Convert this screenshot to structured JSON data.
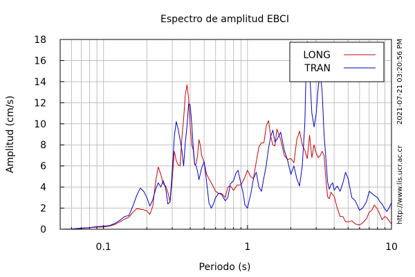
{
  "chart_data": {
    "type": "line",
    "title": "Espectro de amplitud EBCI",
    "xlabel": "Periodo (s)",
    "ylabel": "Amplitud (cm/s)",
    "x_scale": "log",
    "xlim": [
      0.05,
      10
    ],
    "ylim": [
      0,
      18
    ],
    "x_ticks": [
      0.1,
      1,
      10
    ],
    "x_tick_labels": [
      "0.1",
      "1",
      "10"
    ],
    "y_ticks": [
      0,
      2,
      4,
      6,
      8,
      10,
      12,
      14,
      16,
      18
    ],
    "grid": true,
    "legend_position": "top-right",
    "series": [
      {
        "name": "LONG",
        "color": "#cc0000",
        "points": [
          [
            0.05,
            0.0
          ],
          [
            0.06,
            0.02
          ],
          [
            0.07,
            0.08
          ],
          [
            0.08,
            0.15
          ],
          [
            0.09,
            0.2
          ],
          [
            0.1,
            0.22
          ],
          [
            0.11,
            0.3
          ],
          [
            0.12,
            0.45
          ],
          [
            0.13,
            0.7
          ],
          [
            0.14,
            0.95
          ],
          [
            0.15,
            1.15
          ],
          [
            0.16,
            1.6
          ],
          [
            0.17,
            1.95
          ],
          [
            0.18,
            1.9
          ],
          [
            0.19,
            1.85
          ],
          [
            0.2,
            1.75
          ],
          [
            0.21,
            1.4
          ],
          [
            0.22,
            2.2
          ],
          [
            0.23,
            4.5
          ],
          [
            0.24,
            5.9
          ],
          [
            0.25,
            5.2
          ],
          [
            0.26,
            4.3
          ],
          [
            0.27,
            4.1
          ],
          [
            0.28,
            3.5
          ],
          [
            0.29,
            2.6
          ],
          [
            0.3,
            4.8
          ],
          [
            0.31,
            7.4
          ],
          [
            0.32,
            6.5
          ],
          [
            0.33,
            6.1
          ],
          [
            0.34,
            6.0
          ],
          [
            0.35,
            8.6
          ],
          [
            0.36,
            10.5
          ],
          [
            0.37,
            12.7
          ],
          [
            0.38,
            13.7
          ],
          [
            0.39,
            12.4
          ],
          [
            0.4,
            9.8
          ],
          [
            0.41,
            8.0
          ],
          [
            0.42,
            7.5
          ],
          [
            0.43,
            6.1
          ],
          [
            0.44,
            6.2
          ],
          [
            0.45,
            7.0
          ],
          [
            0.46,
            8.5
          ],
          [
            0.47,
            8.0
          ],
          [
            0.48,
            7.0
          ],
          [
            0.5,
            6.3
          ],
          [
            0.52,
            5.2
          ],
          [
            0.55,
            4.6
          ],
          [
            0.58,
            4.0
          ],
          [
            0.6,
            3.6
          ],
          [
            0.63,
            3.4
          ],
          [
            0.66,
            3.4
          ],
          [
            0.7,
            3.0
          ],
          [
            0.73,
            4.0
          ],
          [
            0.76,
            4.1
          ],
          [
            0.8,
            3.7
          ],
          [
            0.85,
            4.2
          ],
          [
            0.9,
            4.2
          ],
          [
            0.95,
            4.8
          ],
          [
            1.0,
            5.6
          ],
          [
            1.05,
            5.0
          ],
          [
            1.1,
            4.8
          ],
          [
            1.15,
            6.4
          ],
          [
            1.2,
            7.8
          ],
          [
            1.25,
            8.2
          ],
          [
            1.3,
            8.2
          ],
          [
            1.35,
            9.8
          ],
          [
            1.4,
            10.3
          ],
          [
            1.45,
            8.8
          ],
          [
            1.5,
            8.0
          ],
          [
            1.55,
            7.9
          ],
          [
            1.6,
            9.5
          ],
          [
            1.7,
            8.5
          ],
          [
            1.8,
            7.0
          ],
          [
            1.9,
            6.6
          ],
          [
            2.0,
            6.7
          ],
          [
            2.1,
            6.3
          ],
          [
            2.2,
            8.5
          ],
          [
            2.3,
            9.3
          ],
          [
            2.4,
            8.0
          ],
          [
            2.5,
            7.5
          ],
          [
            2.6,
            6.7
          ],
          [
            2.7,
            8.9
          ],
          [
            2.8,
            6.8
          ],
          [
            2.9,
            8.0
          ],
          [
            3.0,
            7.2
          ],
          [
            3.1,
            6.8
          ],
          [
            3.2,
            7.0
          ],
          [
            3.3,
            7.4
          ],
          [
            3.4,
            7.0
          ],
          [
            3.5,
            4.8
          ],
          [
            3.6,
            3.1
          ],
          [
            3.7,
            2.9
          ],
          [
            3.8,
            3.5
          ],
          [
            3.9,
            3.3
          ],
          [
            4.0,
            3.1
          ],
          [
            4.2,
            2.0
          ],
          [
            4.4,
            1.2
          ],
          [
            4.6,
            1.2
          ],
          [
            4.8,
            0.7
          ],
          [
            5.0,
            0.7
          ],
          [
            5.3,
            0.8
          ],
          [
            5.6,
            0.5
          ],
          [
            6.0,
            0.4
          ],
          [
            6.3,
            0.6
          ],
          [
            6.7,
            1.0
          ],
          [
            7.0,
            1.6
          ],
          [
            7.3,
            1.8
          ],
          [
            7.6,
            2.3
          ],
          [
            8.0,
            1.9
          ],
          [
            8.3,
            1.4
          ],
          [
            8.6,
            0.9
          ],
          [
            9.0,
            1.2
          ],
          [
            9.3,
            1.1
          ],
          [
            9.6,
            0.8
          ],
          [
            10.0,
            0.5
          ]
        ]
      },
      {
        "name": "TRAN",
        "color": "#0000cc",
        "points": [
          [
            0.05,
            0.0
          ],
          [
            0.06,
            0.02
          ],
          [
            0.07,
            0.1
          ],
          [
            0.08,
            0.15
          ],
          [
            0.09,
            0.25
          ],
          [
            0.1,
            0.28
          ],
          [
            0.11,
            0.35
          ],
          [
            0.12,
            0.55
          ],
          [
            0.13,
            0.85
          ],
          [
            0.14,
            1.2
          ],
          [
            0.15,
            1.3
          ],
          [
            0.16,
            2.2
          ],
          [
            0.17,
            3.2
          ],
          [
            0.18,
            3.9
          ],
          [
            0.19,
            3.6
          ],
          [
            0.2,
            3.0
          ],
          [
            0.21,
            2.2
          ],
          [
            0.22,
            2.8
          ],
          [
            0.23,
            3.8
          ],
          [
            0.24,
            4.4
          ],
          [
            0.25,
            4.0
          ],
          [
            0.26,
            4.6
          ],
          [
            0.27,
            3.9
          ],
          [
            0.28,
            2.4
          ],
          [
            0.29,
            2.6
          ],
          [
            0.3,
            5.5
          ],
          [
            0.31,
            8.8
          ],
          [
            0.32,
            10.2
          ],
          [
            0.33,
            9.5
          ],
          [
            0.34,
            8.5
          ],
          [
            0.35,
            7.5
          ],
          [
            0.36,
            6.0
          ],
          [
            0.37,
            8.2
          ],
          [
            0.38,
            9.8
          ],
          [
            0.39,
            11.9
          ],
          [
            0.4,
            11.8
          ],
          [
            0.41,
            10.0
          ],
          [
            0.42,
            7.8
          ],
          [
            0.43,
            6.2
          ],
          [
            0.44,
            6.0
          ],
          [
            0.45,
            5.5
          ],
          [
            0.46,
            4.7
          ],
          [
            0.48,
            5.8
          ],
          [
            0.5,
            6.4
          ],
          [
            0.52,
            4.5
          ],
          [
            0.54,
            2.5
          ],
          [
            0.56,
            2.0
          ],
          [
            0.58,
            2.4
          ],
          [
            0.6,
            3.0
          ],
          [
            0.63,
            3.4
          ],
          [
            0.66,
            3.3
          ],
          [
            0.7,
            2.7
          ],
          [
            0.73,
            3.0
          ],
          [
            0.76,
            4.3
          ],
          [
            0.8,
            4.6
          ],
          [
            0.83,
            5.3
          ],
          [
            0.86,
            5.6
          ],
          [
            0.9,
            4.3
          ],
          [
            0.93,
            3.5
          ],
          [
            0.96,
            2.3
          ],
          [
            1.0,
            2.0
          ],
          [
            1.03,
            2.8
          ],
          [
            1.06,
            3.5
          ],
          [
            1.1,
            4.8
          ],
          [
            1.15,
            5.4
          ],
          [
            1.2,
            4.0
          ],
          [
            1.25,
            3.6
          ],
          [
            1.3,
            4.9
          ],
          [
            1.35,
            6.1
          ],
          [
            1.4,
            7.7
          ],
          [
            1.45,
            8.8
          ],
          [
            1.5,
            9.4
          ],
          [
            1.55,
            8.3
          ],
          [
            1.6,
            8.5
          ],
          [
            1.7,
            9.2
          ],
          [
            1.8,
            7.5
          ],
          [
            1.9,
            6.5
          ],
          [
            2.0,
            5.2
          ],
          [
            2.1,
            6.0
          ],
          [
            2.2,
            4.8
          ],
          [
            2.3,
            4.1
          ],
          [
            2.4,
            6.0
          ],
          [
            2.5,
            10.0
          ],
          [
            2.55,
            15.0
          ],
          [
            2.6,
            17.8
          ],
          [
            2.7,
            15.0
          ],
          [
            2.8,
            11.0
          ],
          [
            2.9,
            9.7
          ],
          [
            3.0,
            11.0
          ],
          [
            3.1,
            13.5
          ],
          [
            3.2,
            14.8
          ],
          [
            3.3,
            13.0
          ],
          [
            3.4,
            9.0
          ],
          [
            3.5,
            6.8
          ],
          [
            3.6,
            4.5
          ],
          [
            3.7,
            3.8
          ],
          [
            3.8,
            4.2
          ],
          [
            3.9,
            4.4
          ],
          [
            4.0,
            3.7
          ],
          [
            4.2,
            4.1
          ],
          [
            4.4,
            3.6
          ],
          [
            4.6,
            4.4
          ],
          [
            4.8,
            5.4
          ],
          [
            5.0,
            4.8
          ],
          [
            5.3,
            3.0
          ],
          [
            5.6,
            2.7
          ],
          [
            6.0,
            1.8
          ],
          [
            6.3,
            2.0
          ],
          [
            6.7,
            2.6
          ],
          [
            7.0,
            3.6
          ],
          [
            7.3,
            3.4
          ],
          [
            7.6,
            3.2
          ],
          [
            8.0,
            3.0
          ],
          [
            8.3,
            2.6
          ],
          [
            8.6,
            2.4
          ],
          [
            9.0,
            1.9
          ],
          [
            9.3,
            1.7
          ],
          [
            9.6,
            2.0
          ],
          [
            10.0,
            2.5
          ]
        ]
      }
    ]
  },
  "side_texts": {
    "timestamp": "2021-07-21 03:20:56 PM",
    "url": "http://www.lis.ucr.ac.cr"
  }
}
